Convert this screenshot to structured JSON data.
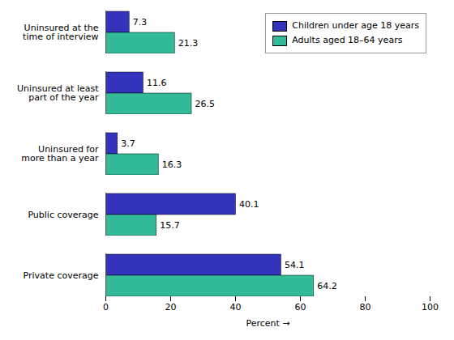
{
  "chart_data": {
    "type": "bar",
    "orientation": "horizontal",
    "categories": [
      "Uninsured at the\ntime of interview",
      "Uninsured at least\npart of the year",
      "Uninsured for\nmore than a year",
      "Public coverage",
      "Private coverage"
    ],
    "series": [
      {
        "name": "Children under age 18 years",
        "color": "#3333BB",
        "values": [
          7.3,
          11.6,
          3.7,
          40.1,
          54.1
        ]
      },
      {
        "name": "Adults aged 18–64 years",
        "color": "#33BB99",
        "values": [
          21.3,
          26.5,
          16.3,
          15.7,
          64.2
        ]
      }
    ],
    "xlabel": "Percent",
    "xlim": [
      0,
      100
    ],
    "xticks": [
      0,
      20,
      40,
      60,
      80,
      100
    ],
    "grid": false,
    "legend": "upper right",
    "data_labels": true
  }
}
